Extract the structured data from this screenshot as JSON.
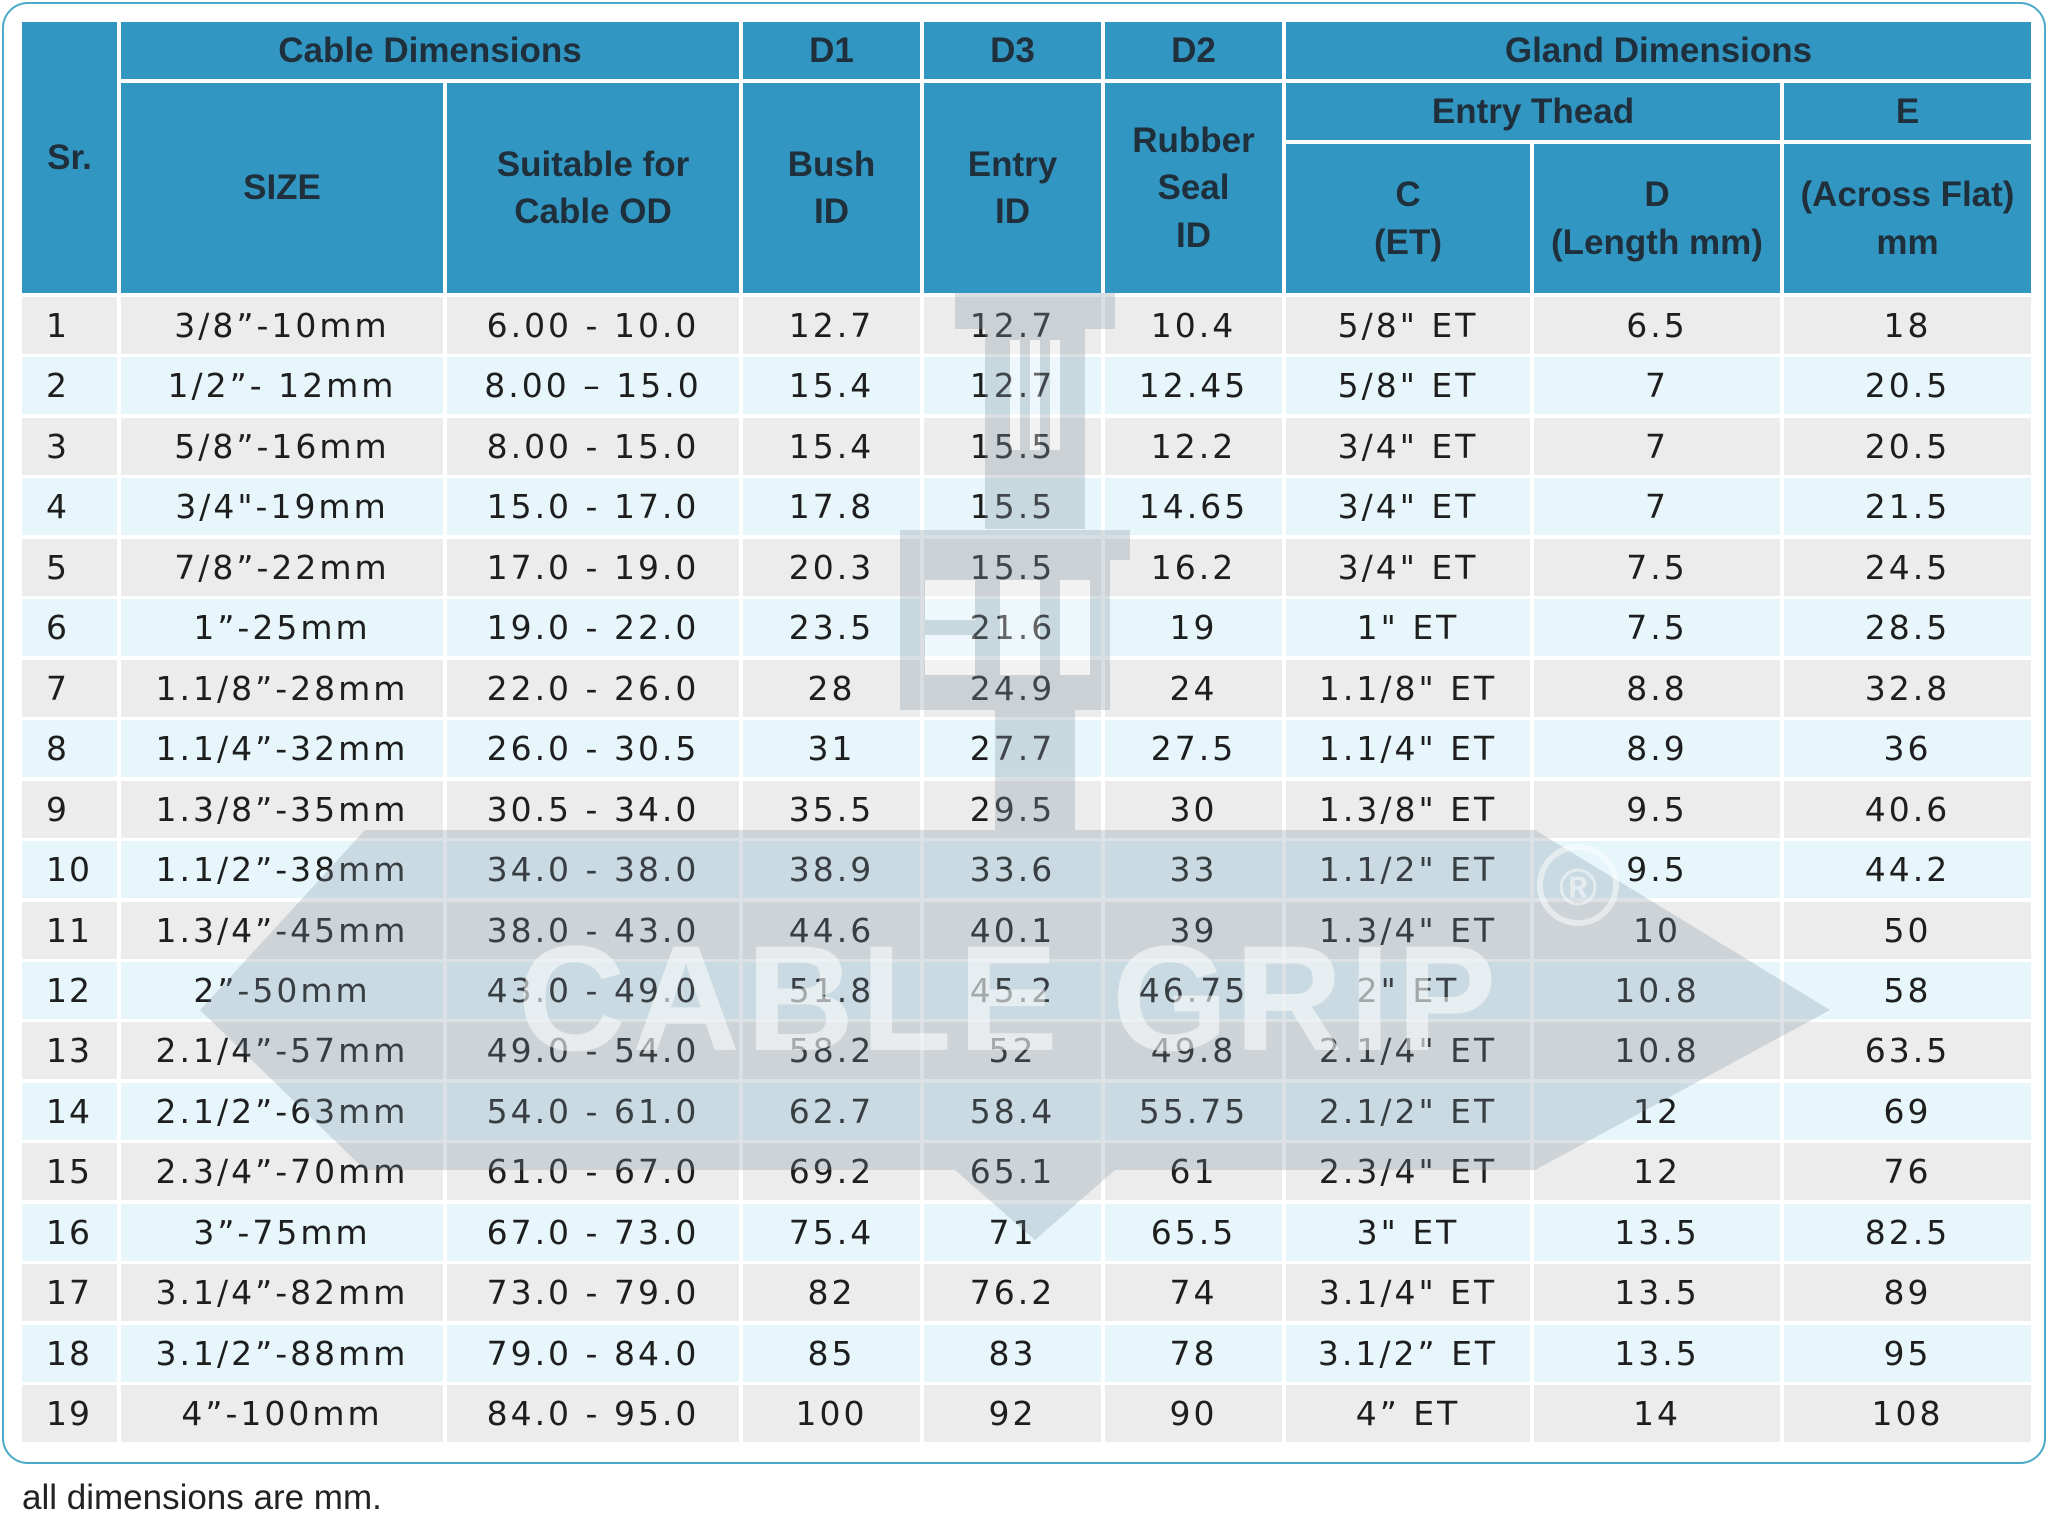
{
  "headers": {
    "sr": "Sr.",
    "cable_dimensions": "Cable Dimensions",
    "d1": "D1",
    "d3": "D3",
    "d2": "D2",
    "gland_dimensions": "Gland Dimensions",
    "size": "SIZE",
    "suitable_line1": "Suitable for",
    "suitable_line2": "Cable OD",
    "bush_line1": "Bush",
    "bush_line2": "ID",
    "entry_line1": "Entry",
    "entry_line2": "ID",
    "rubber_line1": "Rubber",
    "rubber_line2": "Seal",
    "rubber_line3": "ID",
    "entry_thread": "Entry Thead",
    "e": "E",
    "c_line1": "C",
    "c_line2": "(ET)",
    "d_line1": "D",
    "d_line2": "(Length mm)",
    "af_line1": "(Across Flat)",
    "af_line2": "mm"
  },
  "rows": [
    [
      "1",
      "3/8”-10mm",
      "6.00 - 10.0",
      "12.7",
      "12.7",
      "10.4",
      "5/8\" ET",
      "6.5",
      "18"
    ],
    [
      "2",
      "1/2”- 12mm",
      "8.00 – 15.0",
      "15.4",
      "12.7",
      "12.45",
      "5/8\" ET",
      "7",
      "20.5"
    ],
    [
      "3",
      "5/8”-16mm",
      "8.00 - 15.0",
      "15.4",
      "15.5",
      "12.2",
      "3/4\" ET",
      "7",
      "20.5"
    ],
    [
      "4",
      "3/4\"-19mm",
      "15.0 - 17.0",
      "17.8",
      "15.5",
      "14.65",
      "3/4\" ET",
      "7",
      "21.5"
    ],
    [
      "5",
      "7/8”-22mm",
      "17.0 - 19.0",
      "20.3",
      "15.5",
      "16.2",
      "3/4\" ET",
      "7.5",
      "24.5"
    ],
    [
      "6",
      "1”-25mm",
      "19.0 - 22.0",
      "23.5",
      "21.6",
      "19",
      "1\" ET",
      "7.5",
      "28.5"
    ],
    [
      "7",
      "1.1/8”-28mm",
      "22.0 - 26.0",
      "28",
      "24.9",
      "24",
      "1.1/8\" ET",
      "8.8",
      "32.8"
    ],
    [
      "8",
      "1.1/4”-32mm",
      "26.0 - 30.5",
      "31",
      "27.7",
      "27.5",
      "1.1/4\" ET",
      "8.9",
      "36"
    ],
    [
      "9",
      "1.3/8”-35mm",
      "30.5 - 34.0",
      "35.5",
      "29.5",
      "30",
      "1.3/8\" ET",
      "9.5",
      "40.6"
    ],
    [
      "10",
      "1.1/2”-38mm",
      "34.0 - 38.0",
      "38.9",
      "33.6",
      "33",
      "1.1/2\" ET",
      "9.5",
      "44.2"
    ],
    [
      "11",
      "1.3/4”-45mm",
      "38.0 - 43.0",
      "44.6",
      "40.1",
      "39",
      "1.3/4\" ET",
      "10",
      "50"
    ],
    [
      "12",
      "2”-50mm",
      "43.0 - 49.0",
      "51.8",
      "45.2",
      "46.75",
      "2\" ET",
      "10.8",
      "58"
    ],
    [
      "13",
      "2.1/4”-57mm",
      "49.0 - 54.0",
      "58.2",
      "52",
      "49.8",
      "2.1/4\" ET",
      "10.8",
      "63.5"
    ],
    [
      "14",
      "2.1/2”-63mm",
      "54.0 - 61.0",
      "62.7",
      "58.4",
      "55.75",
      "2.1/2\" ET",
      "12",
      "69"
    ],
    [
      "15",
      "2.3/4”-70mm",
      "61.0 - 67.0",
      "69.2",
      "65.1",
      "61",
      "2.3/4\" ET",
      "12",
      "76"
    ],
    [
      "16",
      "3”-75mm",
      "67.0 - 73.0",
      "75.4",
      "71",
      "65.5",
      "3\" ET",
      "13.5",
      "82.5"
    ],
    [
      "17",
      "3.1/4”-82mm",
      "73.0 - 79.0",
      "82",
      "76.2",
      "74",
      "3.1/4\" ET",
      "13.5",
      "89"
    ],
    [
      "18",
      "3.1/2”-88mm",
      "79.0 - 84.0",
      "85",
      "83",
      "78",
      "3.1/2” ET",
      "13.5",
      "95"
    ],
    [
      "19",
      "4”-100mm",
      "84.0 - 95.0",
      "100",
      "92",
      "90",
      "4” ET",
      "14",
      "108"
    ]
  ],
  "watermark": {
    "text": "CABLE GRIP",
    "registered": "®"
  },
  "footnote": "all dimensions are mm.",
  "colors": {
    "header_bg": "#3197c2",
    "row_odd_bg": "#ececec",
    "row_even_bg": "#e6f6fb",
    "border": "#49a9c7"
  }
}
